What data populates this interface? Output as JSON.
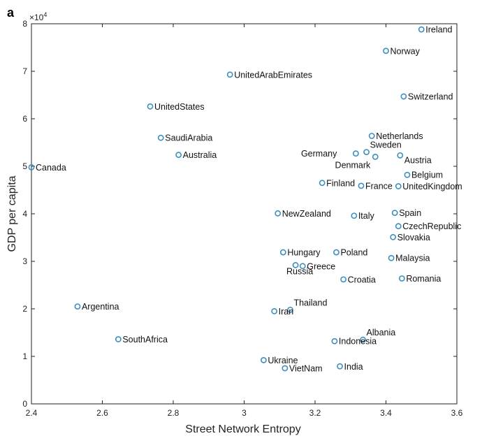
{
  "panel_label": "a",
  "y_multiplier": {
    "base": "×10",
    "exponent": "4"
  },
  "chart_data": {
    "type": "scatter",
    "title": "",
    "xlabel": "Street Network Entropy",
    "ylabel": "GDP per capita",
    "xlim": [
      2.4,
      3.6
    ],
    "ylim": [
      0,
      80000
    ],
    "xticks": [
      2.4,
      2.6,
      2.8,
      3.0,
      3.2,
      3.4,
      3.6
    ],
    "xtick_labels": [
      "2.4",
      "2.6",
      "2.8",
      "3",
      "3.2",
      "3.4",
      "3.6"
    ],
    "yticks": [
      0,
      10000,
      20000,
      30000,
      40000,
      50000,
      60000,
      70000,
      80000
    ],
    "ytick_labels": [
      "0",
      "1",
      "2",
      "3",
      "4",
      "5",
      "6",
      "7",
      "8"
    ],
    "grid": false,
    "marker_color": "#3a8fc0",
    "points": [
      {
        "label": "Ireland",
        "x": 3.5,
        "y": 78800,
        "label_pos": "right"
      },
      {
        "label": "Norway",
        "x": 3.4,
        "y": 74300,
        "label_pos": "right"
      },
      {
        "label": "UnitedArabEmirates",
        "x": 2.96,
        "y": 69300,
        "label_pos": "right"
      },
      {
        "label": "Switzerland",
        "x": 3.45,
        "y": 64700,
        "label_pos": "right"
      },
      {
        "label": "UnitedStates",
        "x": 2.735,
        "y": 62600,
        "label_pos": "right"
      },
      {
        "label": "Netherlands",
        "x": 3.36,
        "y": 56400,
        "label_pos": "right"
      },
      {
        "label": "SaudiArabia",
        "x": 2.765,
        "y": 56000,
        "label_pos": "right"
      },
      {
        "label": "Sweden",
        "x": 3.345,
        "y": 53000,
        "label_pos": "above-right"
      },
      {
        "label": "Australia",
        "x": 2.815,
        "y": 52400,
        "label_pos": "right"
      },
      {
        "label": "Germany",
        "x": 3.315,
        "y": 52700,
        "label_pos": "left"
      },
      {
        "label": "Austria",
        "x": 3.44,
        "y": 52300,
        "label_pos": "below-right"
      },
      {
        "label": "Denmark",
        "x": 3.37,
        "y": 52000,
        "label_pos": "below-left"
      },
      {
        "label": "Canada",
        "x": 2.4,
        "y": 49800,
        "label_pos": "right"
      },
      {
        "label": "Belgium",
        "x": 3.46,
        "y": 48200,
        "label_pos": "right"
      },
      {
        "label": "Finland",
        "x": 3.22,
        "y": 46500,
        "label_pos": "right"
      },
      {
        "label": "France",
        "x": 3.33,
        "y": 45900,
        "label_pos": "right"
      },
      {
        "label": "UnitedKingdom",
        "x": 3.435,
        "y": 45800,
        "label_pos": "right"
      },
      {
        "label": "Spain",
        "x": 3.425,
        "y": 40200,
        "label_pos": "right"
      },
      {
        "label": "NewZealand",
        "x": 3.095,
        "y": 40100,
        "label_pos": "right"
      },
      {
        "label": "Italy",
        "x": 3.31,
        "y": 39600,
        "label_pos": "right"
      },
      {
        "label": "CzechRepublic",
        "x": 3.435,
        "y": 37400,
        "label_pos": "right"
      },
      {
        "label": "Slovakia",
        "x": 3.42,
        "y": 35100,
        "label_pos": "right"
      },
      {
        "label": "Hungary",
        "x": 3.11,
        "y": 31900,
        "label_pos": "right"
      },
      {
        "label": "Poland",
        "x": 3.26,
        "y": 31900,
        "label_pos": "right"
      },
      {
        "label": "Malaysia",
        "x": 3.415,
        "y": 30700,
        "label_pos": "right"
      },
      {
        "label": "Greece",
        "x": 3.165,
        "y": 29000,
        "label_pos": "right"
      },
      {
        "label": "Russia",
        "x": 3.145,
        "y": 29200,
        "label_pos": "below"
      },
      {
        "label": "Romania",
        "x": 3.445,
        "y": 26400,
        "label_pos": "right"
      },
      {
        "label": "Croatia",
        "x": 3.28,
        "y": 26200,
        "label_pos": "right"
      },
      {
        "label": "Argentina",
        "x": 2.53,
        "y": 20500,
        "label_pos": "right"
      },
      {
        "label": "Thailand",
        "x": 3.13,
        "y": 19800,
        "label_pos": "above-right"
      },
      {
        "label": "Iran",
        "x": 3.085,
        "y": 19500,
        "label_pos": "right"
      },
      {
        "label": "Albania",
        "x": 3.335,
        "y": 13500,
        "label_pos": "above-right"
      },
      {
        "label": "SouthAfrica",
        "x": 2.645,
        "y": 13600,
        "label_pos": "right"
      },
      {
        "label": "Indonesia",
        "x": 3.255,
        "y": 13200,
        "label_pos": "right"
      },
      {
        "label": "Ukraine",
        "x": 3.055,
        "y": 9200,
        "label_pos": "right"
      },
      {
        "label": "VietNam",
        "x": 3.115,
        "y": 7500,
        "label_pos": "right"
      },
      {
        "label": "India",
        "x": 3.27,
        "y": 7900,
        "label_pos": "right"
      }
    ]
  }
}
